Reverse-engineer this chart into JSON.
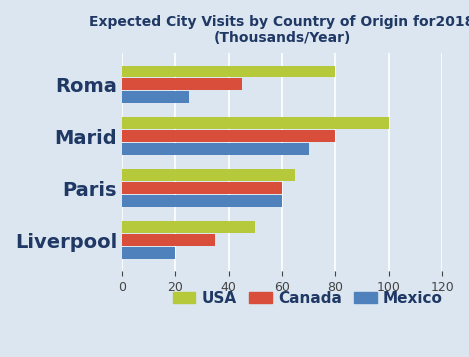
{
  "title_line1": "Expected City Visits by Country of Origin for2018",
  "title_line2": "(Thousands/Year)",
  "cities": [
    "Roma",
    "Marid",
    "Paris",
    "Liverpool"
  ],
  "countries": [
    "USA",
    "Canada",
    "Mexico"
  ],
  "values": {
    "Roma": [
      80,
      45,
      25
    ],
    "Marid": [
      100,
      80,
      70
    ],
    "Paris": [
      65,
      60,
      60
    ],
    "Liverpool": [
      50,
      35,
      20
    ]
  },
  "colors": {
    "USA": "#b5c93a",
    "Canada": "#d94e3a",
    "Mexico": "#4f81bd"
  },
  "xlim": [
    0,
    120
  ],
  "xticks": [
    0,
    20,
    40,
    60,
    80,
    100,
    120
  ],
  "bar_height": 0.25,
  "title_color": "#1f3864",
  "city_label_color": "#1f3864",
  "legend_label_color": "#1f3864",
  "bg_color": "#dce6f1",
  "grid_color": "#ffffff",
  "title_fontsize": 10,
  "city_fontsize": 14,
  "legend_fontsize": 11,
  "tick_fontsize": 9
}
